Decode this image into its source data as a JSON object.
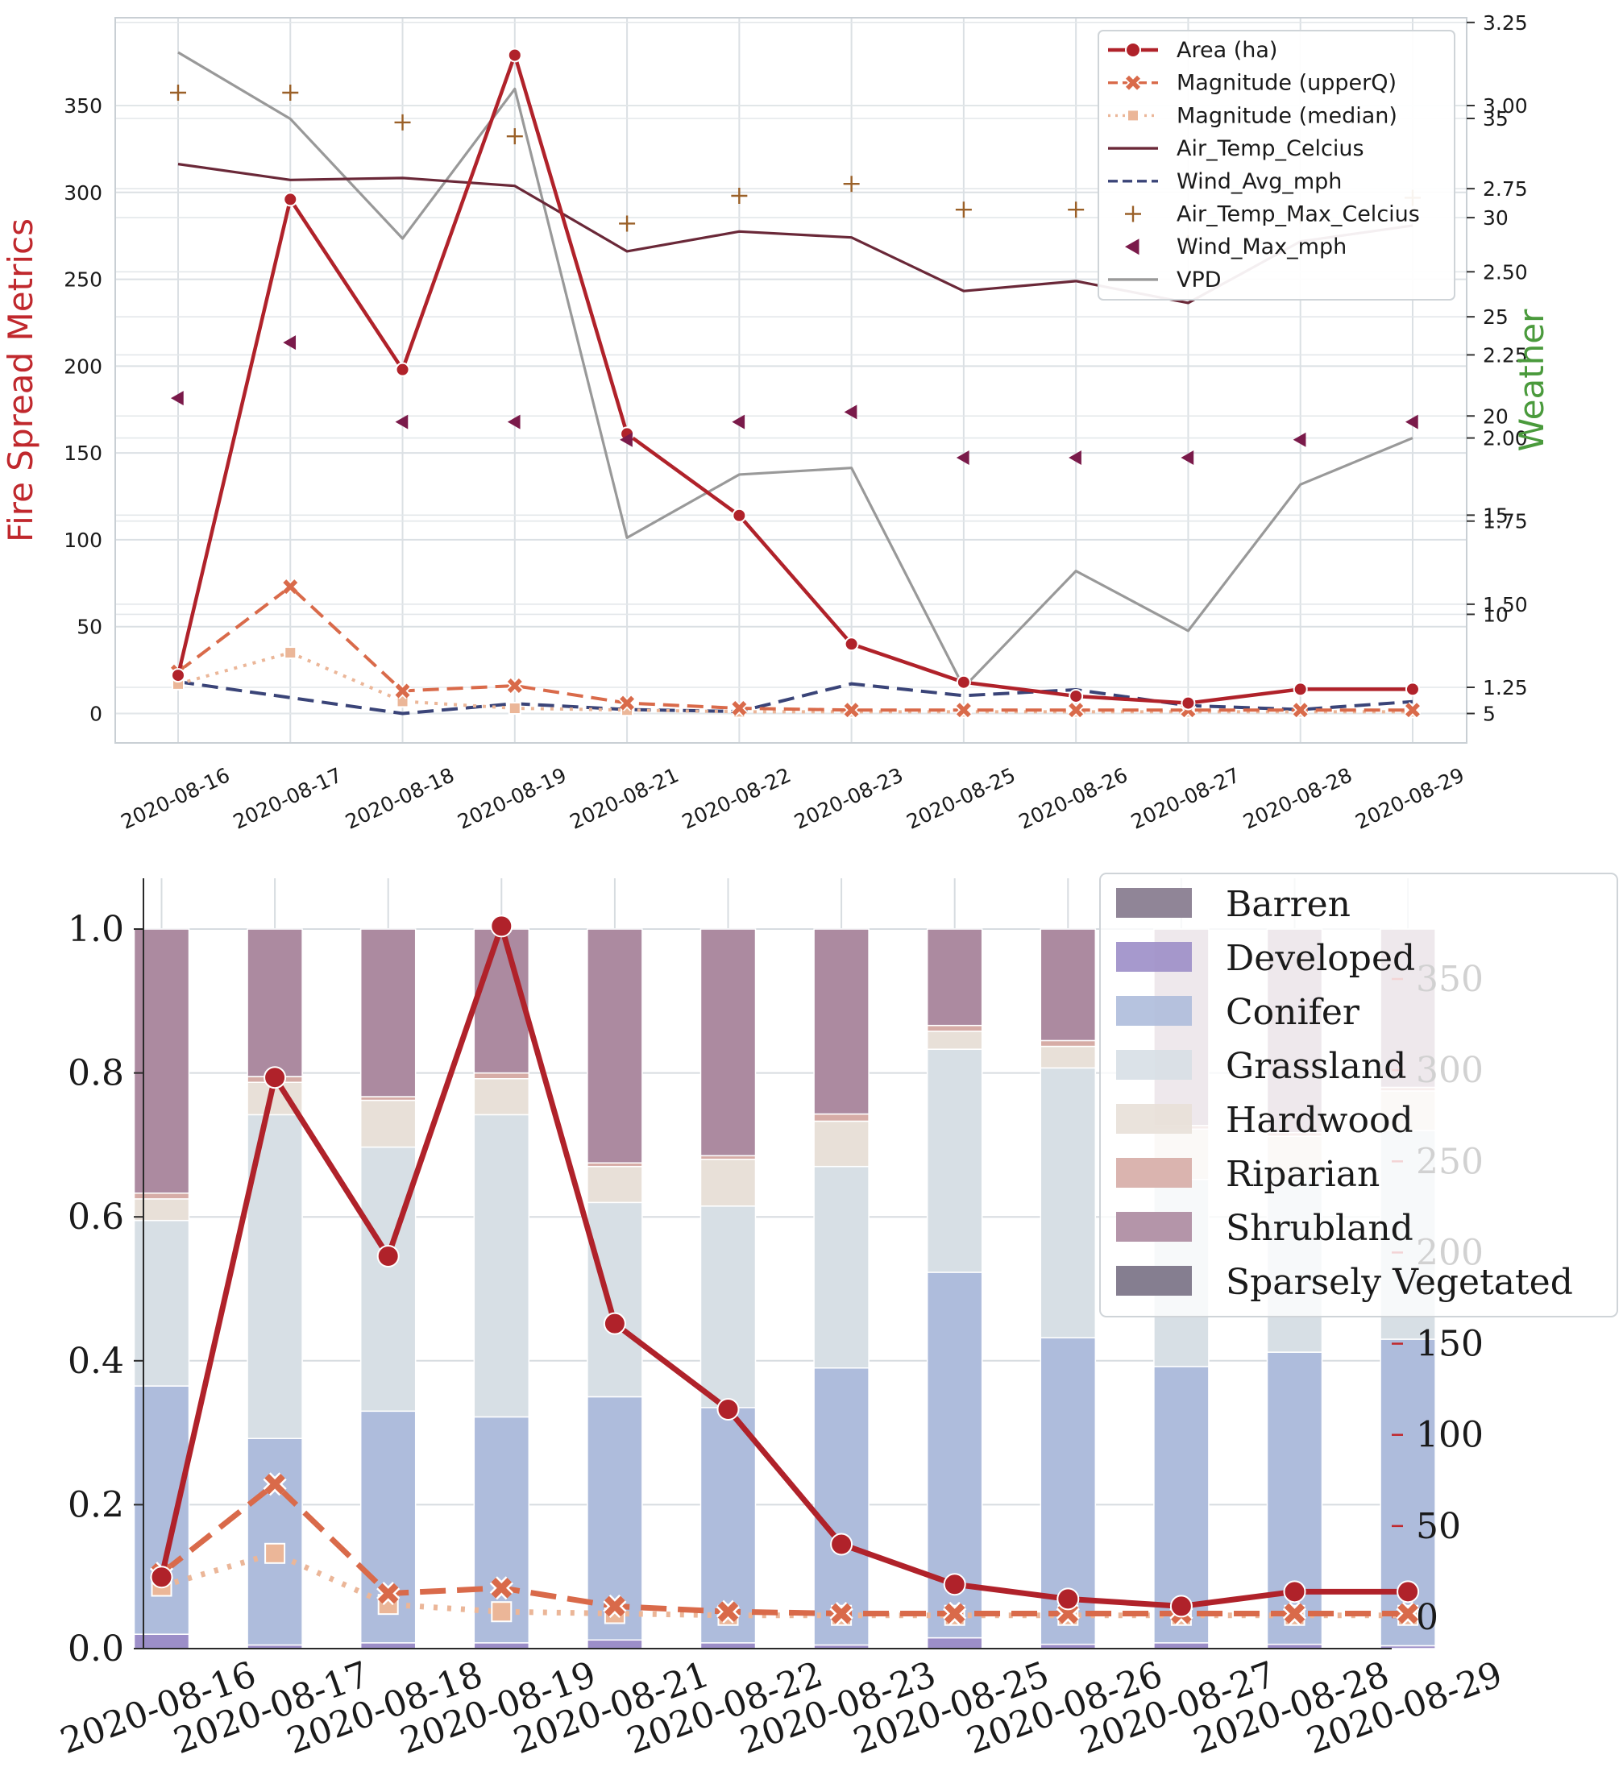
{
  "chart_data": [
    {
      "type": "line",
      "categories": [
        "2020-08-16",
        "2020-08-17",
        "2020-08-18",
        "2020-08-19",
        "2020-08-21",
        "2020-08-22",
        "2020-08-23",
        "2020-08-25",
        "2020-08-26",
        "2020-08-27",
        "2020-08-28",
        "2020-08-29"
      ],
      "ylabel": "Fire Spread Metrics",
      "ylabel_color": "#c0282d",
      "ylabel_right": "Weather",
      "ylabel_right_color": "#4a9a3c",
      "ylim": [
        -18,
        392
      ],
      "yticks": [
        0,
        50,
        100,
        150,
        200,
        250,
        300,
        350
      ],
      "grid": true,
      "legend_position": "top-right",
      "series": [
        {
          "name": "Area (ha)",
          "axis": "left",
          "style": "line-circle",
          "color": "#b0222a",
          "values": [
            22,
            296,
            198,
            379,
            161,
            114,
            40,
            18,
            10,
            6,
            14,
            14
          ]
        },
        {
          "name": "Magnitude (upperQ)",
          "axis": "left",
          "style": "dashed-x",
          "color": "#d96a4a",
          "values": [
            24,
            73,
            13,
            16,
            6,
            3,
            2,
            2,
            2,
            2,
            2,
            2
          ]
        },
        {
          "name": "Magnitude (median)",
          "axis": "left",
          "style": "dotted-square",
          "color": "#ebb698",
          "values": [
            17,
            35,
            7,
            3,
            2,
            1,
            1,
            1,
            1,
            1,
            1,
            1
          ]
        },
        {
          "name": "Air_Temp_Celcius",
          "axis": "right-temp",
          "style": "line",
          "color": "#6a2838",
          "values": [
            32.7,
            31.9,
            32.0,
            31.6,
            28.3,
            29.3,
            29.0,
            26.3,
            26.8,
            25.7,
            28.8,
            29.6
          ]
        },
        {
          "name": "Wind_Avg_mph",
          "axis": "right-temp",
          "style": "dashed",
          "color": "#3a4478",
          "values": [
            6.6,
            5.8,
            5.0,
            5.5,
            5.2,
            5.1,
            6.5,
            5.9,
            6.2,
            5.4,
            5.2,
            5.6
          ]
        },
        {
          "name": "Air_Temp_Max_Celcius",
          "axis": "right-temp",
          "style": "plus",
          "color": "#9a6028",
          "values": [
            36.3,
            36.3,
            34.8,
            34.1,
            29.7,
            31.1,
            31.7,
            30.4,
            30.4,
            28.7,
            30.1,
            31.0
          ]
        },
        {
          "name": "Wind_Max_mph",
          "axis": "right-temp",
          "style": "triangle-left",
          "color": "#7a1a4a",
          "values": [
            20.9,
            23.7,
            19.7,
            19.7,
            18.8,
            19.7,
            20.2,
            17.9,
            17.9,
            17.9,
            18.8,
            19.7
          ]
        },
        {
          "name": "VPD",
          "axis": "right-vpd",
          "style": "line",
          "color": "#999999",
          "values": [
            3.16,
            2.96,
            2.6,
            3.05,
            1.7,
            1.89,
            1.91,
            1.25,
            1.6,
            1.42,
            1.86,
            2.0
          ]
        }
      ],
      "right_axis_temp": {
        "ylim": [
          2.58,
          38.92
        ],
        "ticks": [
          5,
          10,
          15,
          20,
          25,
          30,
          35
        ]
      },
      "right_axis_vpd": {
        "ylim": [
          1.134,
          3.25
        ],
        "ticks": [
          "1.25",
          "1.50",
          "1.75",
          "2.00",
          "2.25",
          "2.50",
          "2.75",
          "3.00",
          "3.25"
        ]
      }
    },
    {
      "type": "bar",
      "stacked": true,
      "categories": [
        "2020-08-16",
        "2020-08-17",
        "2020-08-18",
        "2020-08-19",
        "2020-08-21",
        "2020-08-22",
        "2020-08-23",
        "2020-08-25",
        "2020-08-26",
        "2020-08-27",
        "2020-08-28",
        "2020-08-29"
      ],
      "ylim": [
        0,
        1.03
      ],
      "yticks": [
        "0.0",
        "0.2",
        "0.4",
        "0.6",
        "0.8",
        "1.0"
      ],
      "legend_position": "top-right",
      "series": [
        {
          "name": "Barren",
          "color": "#84788c",
          "values": [
            0,
            0,
            0,
            0,
            0,
            0,
            0,
            0,
            0,
            0,
            0,
            0
          ]
        },
        {
          "name": "Developed",
          "color": "#9c8ec8",
          "values": [
            0.02,
            0.005,
            0.008,
            0.008,
            0.012,
            0.008,
            0.005,
            0.015,
            0.006,
            0.008,
            0.006,
            0.004
          ]
        },
        {
          "name": "Conifer",
          "color": "#aebcdc",
          "values": [
            0.345,
            0.287,
            0.322,
            0.314,
            0.338,
            0.327,
            0.385,
            0.508,
            0.426,
            0.384,
            0.406,
            0.426
          ]
        },
        {
          "name": "Grassland",
          "color": "#d7dfe5",
          "values": [
            0.23,
            0.45,
            0.367,
            0.42,
            0.27,
            0.28,
            0.28,
            0.31,
            0.375,
            0.26,
            0.24,
            0.29
          ]
        },
        {
          "name": "Hardwood",
          "color": "#e8e0d8",
          "values": [
            0.03,
            0.045,
            0.065,
            0.05,
            0.05,
            0.065,
            0.063,
            0.025,
            0.03,
            0.07,
            0.06,
            0.055
          ]
        },
        {
          "name": "Riparian",
          "color": "#d6aca6",
          "values": [
            0.008,
            0.008,
            0.005,
            0.008,
            0.005,
            0.005,
            0.01,
            0.008,
            0.008,
            0.005,
            0.005,
            0.005
          ]
        },
        {
          "name": "Shrubland",
          "color": "#ac8aa0",
          "values": [
            0.367,
            0.205,
            0.233,
            0.2,
            0.325,
            0.315,
            0.257,
            0.134,
            0.155,
            0.273,
            0.283,
            0.22
          ]
        },
        {
          "name": "Sparsely Vegetated",
          "color": "#787084",
          "values": [
            0,
            0,
            0,
            0,
            0,
            0,
            0,
            0,
            0,
            0,
            0,
            0
          ]
        }
      ],
      "overlay_axis": {
        "ylim": [
          -12.8,
          381.6
        ],
        "ticks": [
          0,
          50,
          100,
          150,
          200,
          250,
          300,
          350
        ],
        "tick_color": "#c0282d"
      },
      "overlay_series": [
        {
          "name": "Area (ha)",
          "style": "line-circle",
          "color": "#b0222a",
          "values": [
            22,
            296,
            198,
            379,
            161,
            114,
            40,
            18,
            10,
            6,
            14,
            14
          ]
        },
        {
          "name": "Magnitude (upperQ)",
          "style": "dashed-x",
          "color": "#d96a4a",
          "values": [
            24,
            73,
            13,
            16,
            6,
            3,
            2,
            2,
            2,
            2,
            2,
            2
          ]
        },
        {
          "name": "Magnitude (median)",
          "style": "dotted-square",
          "color": "#ebb698",
          "values": [
            17,
            35,
            7,
            3,
            2,
            1,
            1,
            1,
            1,
            1,
            1,
            1
          ]
        }
      ]
    }
  ]
}
